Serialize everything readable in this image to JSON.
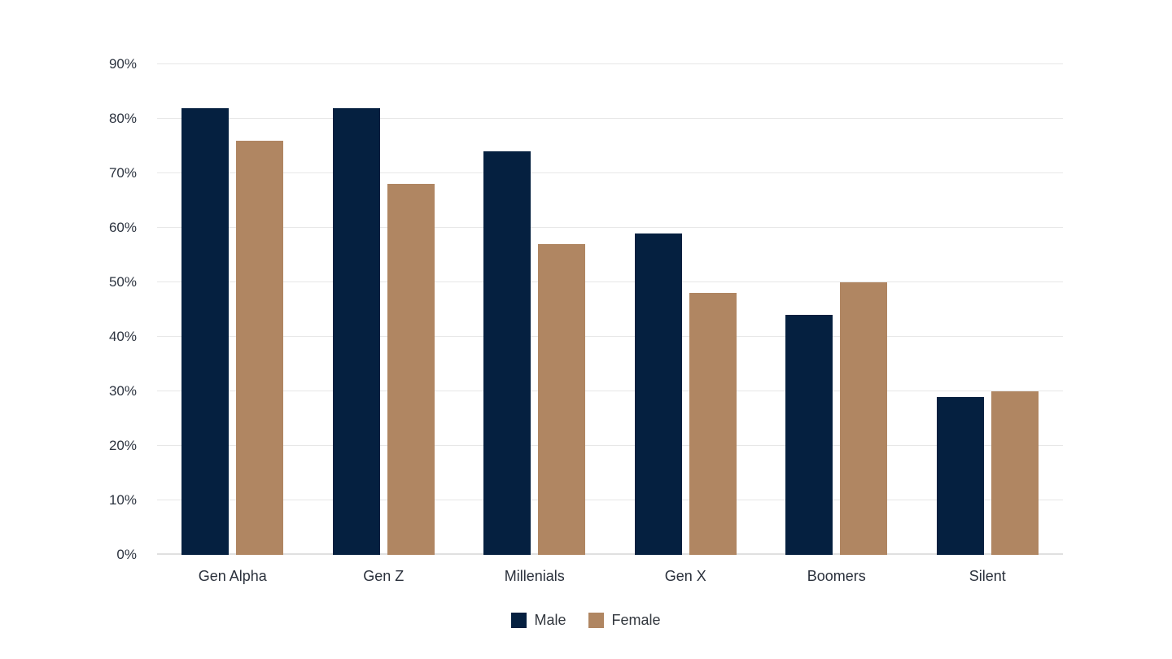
{
  "chart_data": {
    "type": "bar",
    "title": "",
    "xlabel": "",
    "ylabel": "",
    "categories": [
      "Gen Alpha",
      "Gen Z",
      "Millenials",
      "Gen X",
      "Boomers",
      "Silent"
    ],
    "series": [
      {
        "name": "Male",
        "color": "#052040",
        "values": [
          82,
          82,
          74,
          59,
          44,
          29
        ]
      },
      {
        "name": "Female",
        "color": "#B08662",
        "values": [
          76,
          68,
          57,
          48,
          50,
          30
        ]
      }
    ],
    "ylim": [
      0,
      90
    ],
    "yticks": [
      0,
      10,
      20,
      30,
      40,
      50,
      60,
      70,
      80,
      90
    ],
    "ytick_labels": [
      "0%",
      "10%",
      "20%",
      "30%",
      "40%",
      "50%",
      "60%",
      "70%",
      "80%",
      "90%"
    ],
    "grid": true,
    "legend_position": "bottom"
  },
  "colors": {
    "background": "#ffffff",
    "gridline": "#e7e7e7",
    "baseline": "#e0e0e0",
    "axis_text": "#2d3440",
    "category_text": "#2b313c",
    "legend_text": "#33383f"
  }
}
